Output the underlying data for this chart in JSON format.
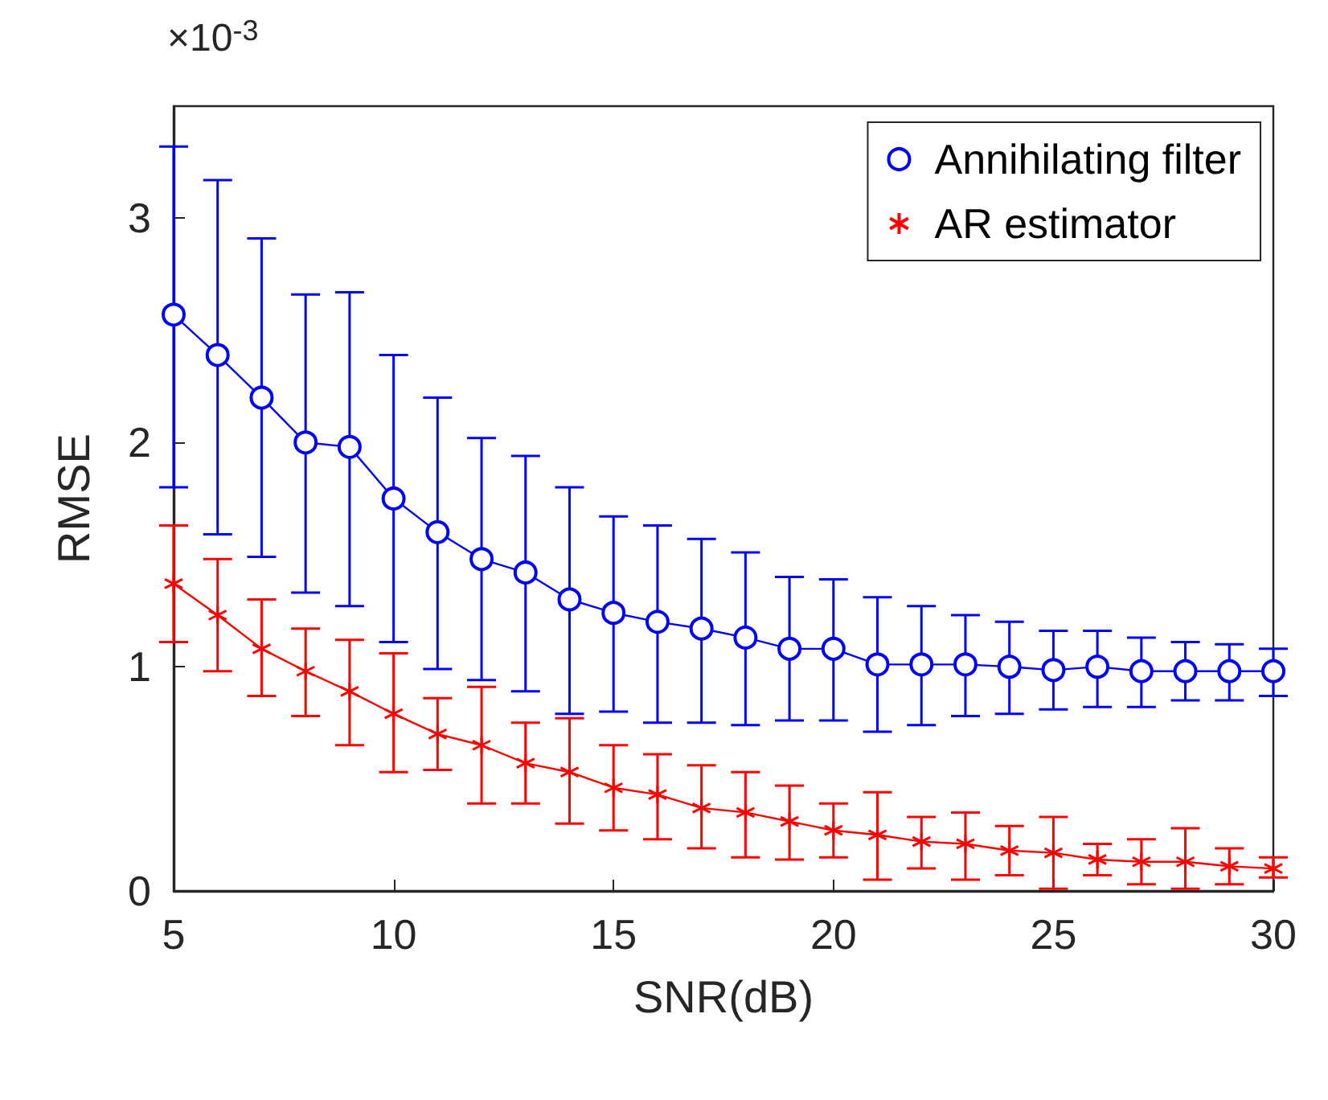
{
  "chart_data": {
    "type": "line",
    "xlabel": "SNR(dB)",
    "ylabel": "RMSE",
    "annotations": [
      "×10$^{-3}$"
    ],
    "x": [
      5,
      6,
      7,
      8,
      9,
      10,
      11,
      12,
      13,
      14,
      15,
      16,
      17,
      18,
      19,
      20,
      21,
      22,
      23,
      24,
      25,
      26,
      27,
      28,
      29,
      30
    ],
    "series": [
      {
        "name": "Annihilating filter",
        "color": "#0000ff",
        "marker": "circle",
        "values": [
          2.57,
          2.39,
          2.2,
          2.0,
          1.98,
          1.75,
          1.6,
          1.48,
          1.42,
          1.3,
          1.24,
          1.2,
          1.17,
          1.13,
          1.08,
          1.08,
          1.01,
          1.01,
          1.01,
          1.0,
          0.985,
          1.0,
          0.98,
          0.98,
          0.98,
          0.98
        ],
        "errors": [
          [
            1.8,
            3.32
          ],
          [
            1.59,
            3.17
          ],
          [
            1.49,
            2.91
          ],
          [
            1.33,
            2.66
          ],
          [
            1.27,
            2.67
          ],
          [
            1.11,
            2.39
          ],
          [
            0.99,
            2.2
          ],
          [
            0.94,
            2.02
          ],
          [
            0.89,
            1.94
          ],
          [
            0.79,
            1.8
          ],
          [
            0.8,
            1.67
          ],
          [
            0.75,
            1.63
          ],
          [
            0.75,
            1.57
          ],
          [
            0.74,
            1.51
          ],
          [
            0.76,
            1.4
          ],
          [
            0.76,
            1.39
          ],
          [
            0.71,
            1.31
          ],
          [
            0.74,
            1.27
          ],
          [
            0.78,
            1.23
          ],
          [
            0.79,
            1.2
          ],
          [
            0.81,
            1.16
          ],
          [
            0.82,
            1.16
          ],
          [
            0.82,
            1.13
          ],
          [
            0.85,
            1.11
          ],
          [
            0.85,
            1.1
          ],
          [
            0.87,
            1.08
          ]
        ]
      },
      {
        "name": "AR estimator",
        "color": "#ff0000",
        "marker": "cross",
        "values": [
          1.37,
          1.23,
          1.08,
          0.98,
          0.89,
          0.79,
          0.7,
          0.65,
          0.57,
          0.53,
          0.46,
          0.43,
          0.37,
          0.35,
          0.31,
          0.27,
          0.25,
          0.22,
          0.21,
          0.18,
          0.17,
          0.14,
          0.13,
          0.13,
          0.11,
          0.1
        ],
        "errors": [
          [
            1.11,
            1.63
          ],
          [
            0.98,
            1.48
          ],
          [
            0.87,
            1.3
          ],
          [
            0.78,
            1.17
          ],
          [
            0.65,
            1.12
          ],
          [
            0.53,
            1.06
          ],
          [
            0.54,
            0.86
          ],
          [
            0.39,
            0.91
          ],
          [
            0.39,
            0.75
          ],
          [
            0.3,
            0.77
          ],
          [
            0.27,
            0.65
          ],
          [
            0.23,
            0.61
          ],
          [
            0.19,
            0.56
          ],
          [
            0.15,
            0.53
          ],
          [
            0.14,
            0.47
          ],
          [
            0.15,
            0.39
          ],
          [
            0.05,
            0.44
          ],
          [
            0.1,
            0.33
          ],
          [
            0.05,
            0.35
          ],
          [
            0.07,
            0.29
          ],
          [
            0.01,
            0.33
          ],
          [
            0.07,
            0.21
          ],
          [
            0.03,
            0.23
          ],
          [
            0.01,
            0.28
          ],
          [
            0.03,
            0.19
          ],
          [
            0.06,
            0.15
          ]
        ]
      }
    ],
    "xlim": [
      5,
      30
    ],
    "xticks": [
      5,
      10,
      15,
      20,
      25,
      30
    ],
    "ylim": [
      0,
      3.5
    ],
    "yticks": [
      0,
      1,
      2,
      3
    ],
    "grid": false,
    "legend": "top right",
    "line_style": "solid"
  }
}
